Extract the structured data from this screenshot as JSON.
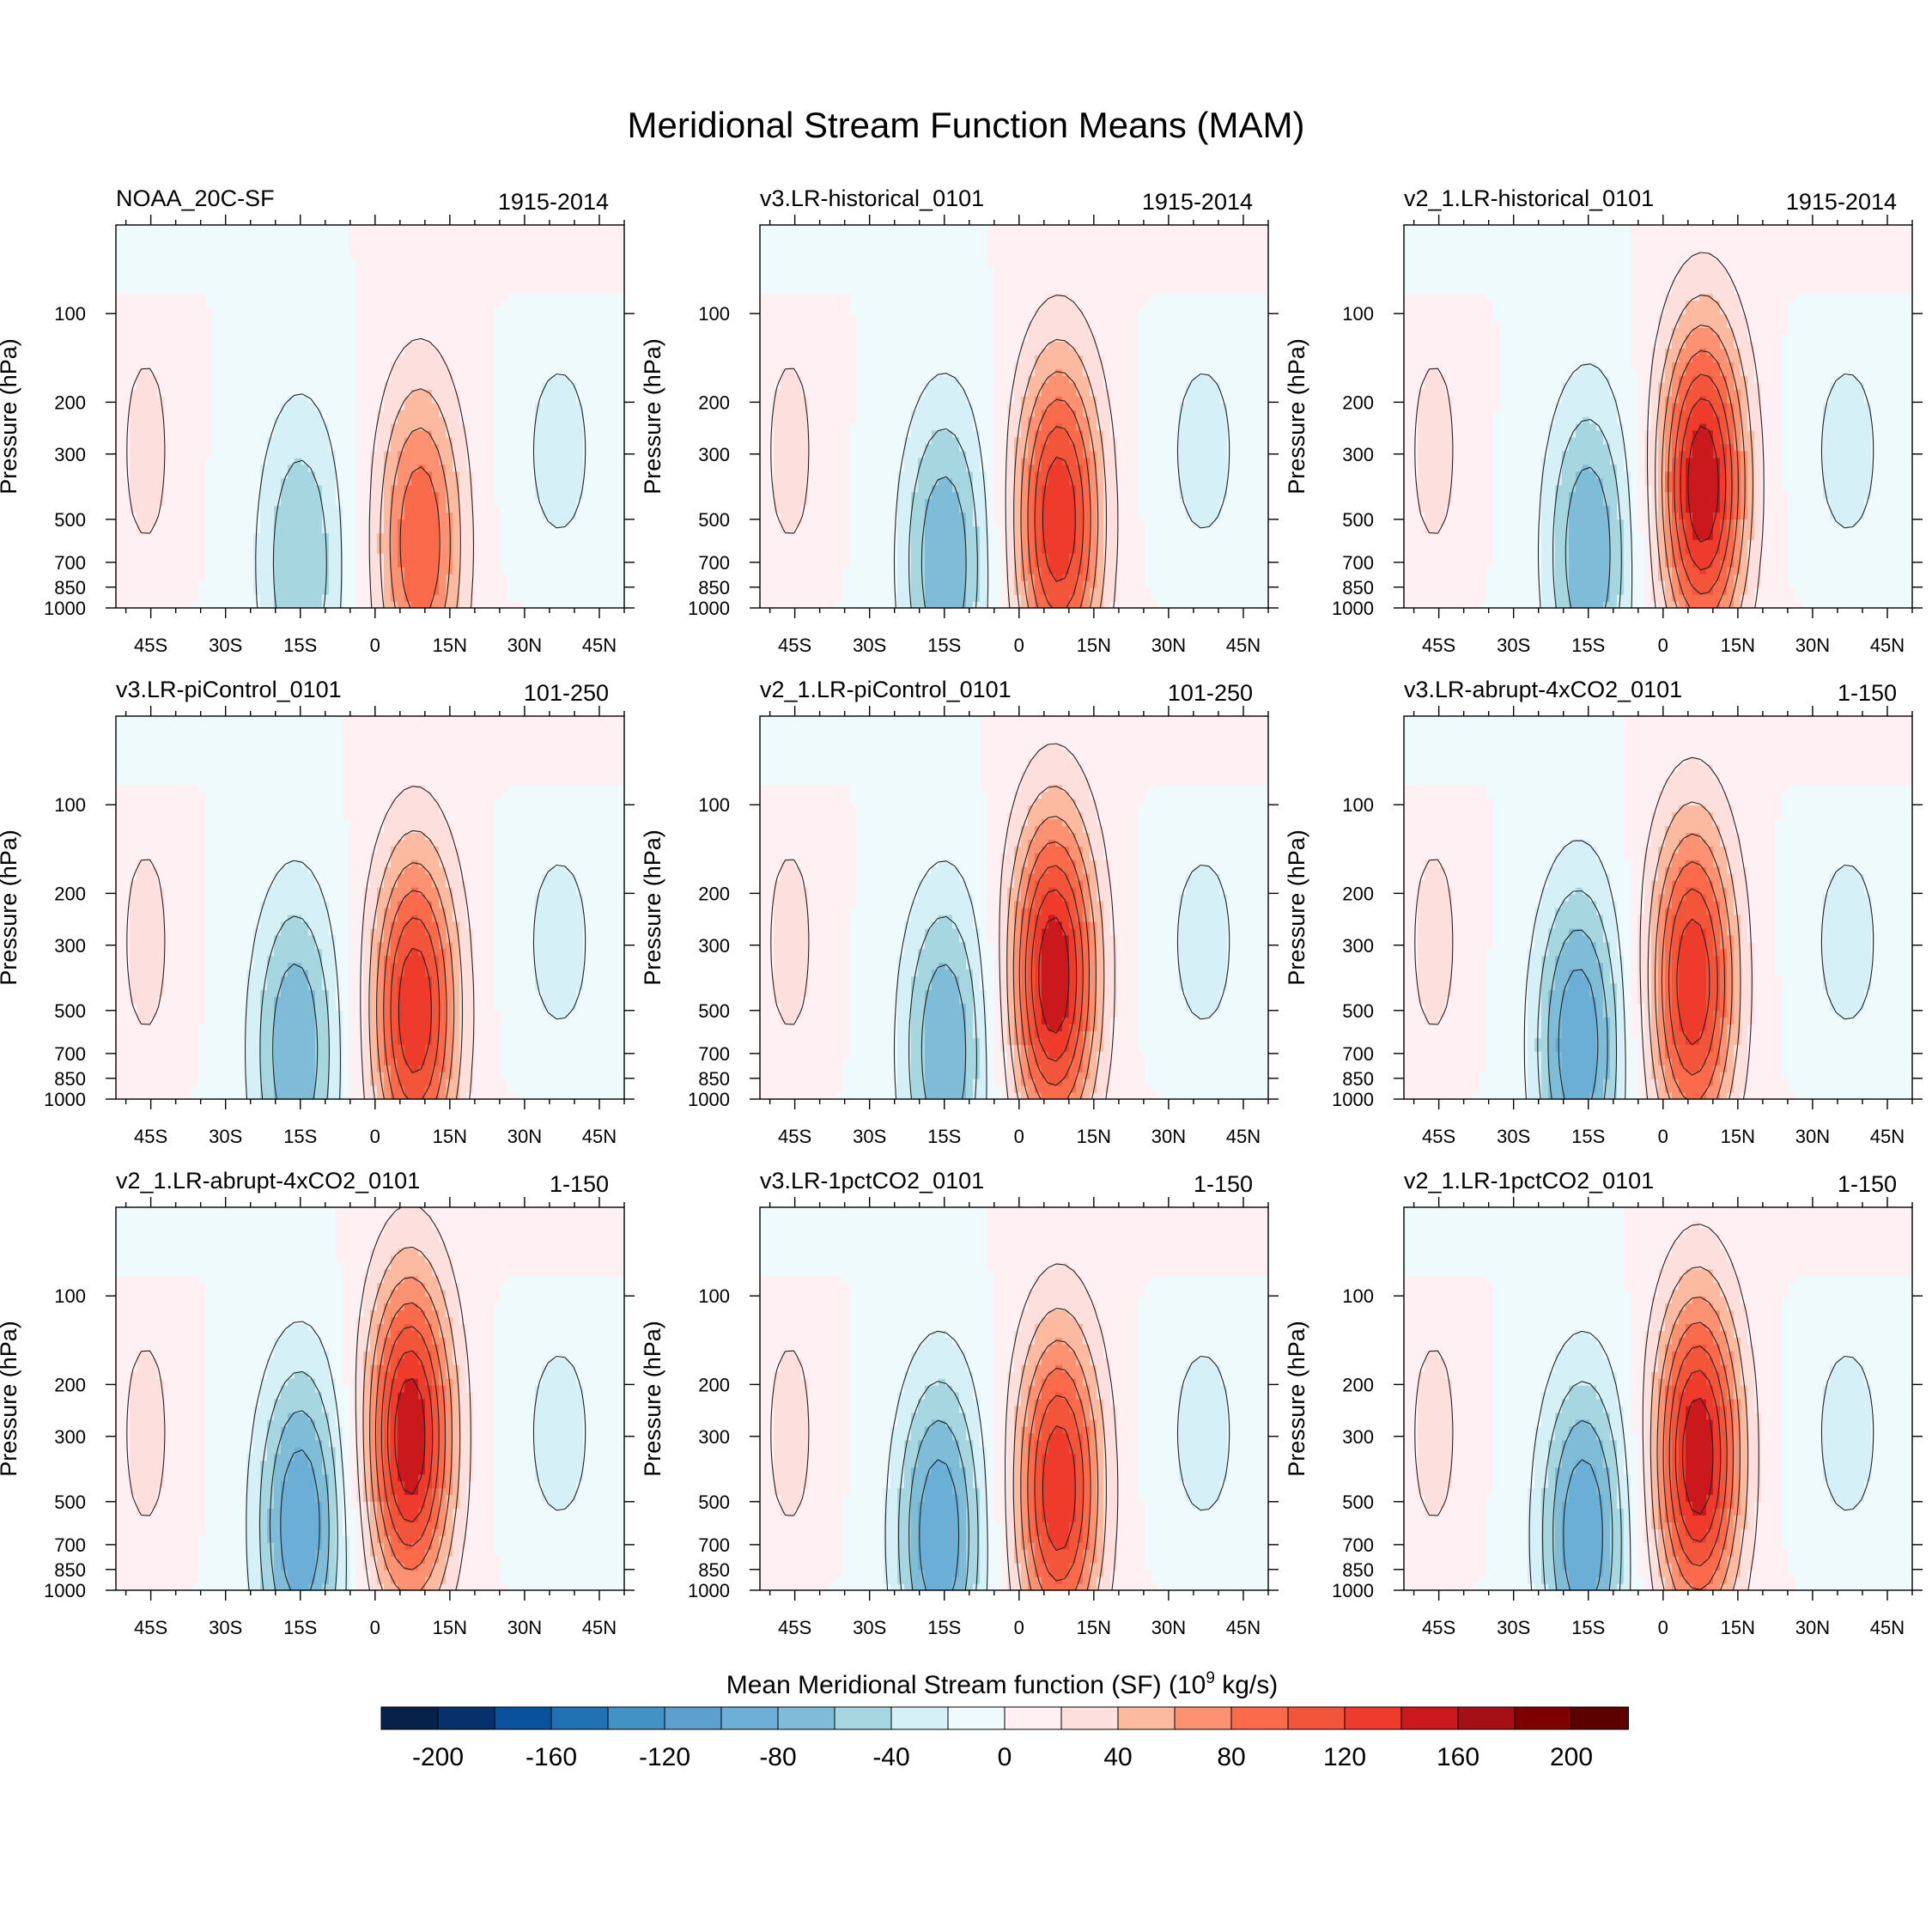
{
  "chart_data": {
    "type": "contour",
    "title": "Meridional Stream Function Means (MAM)",
    "ylabel": "Pressure (hPa)",
    "y_ticks": [
      "100",
      "200",
      "300",
      "500",
      "700",
      "850",
      "1000"
    ],
    "y_levels": [
      100,
      200,
      300,
      500,
      700,
      850,
      1000
    ],
    "x_ticks": [
      "45S",
      "30S",
      "15S",
      "0",
      "15N",
      "30N",
      "45N"
    ],
    "x_values": [
      -45,
      -30,
      -15,
      0,
      15,
      30,
      45
    ],
    "xlim": [
      -52,
      50
    ],
    "ylim": [
      1000,
      50
    ],
    "colorbar": {
      "title": "Mean Meridional Stream function (SF) (10",
      "title_exp": "9",
      "title_unit": " kg/s)",
      "levels": [
        -220,
        -200,
        -180,
        -160,
        -140,
        -120,
        -100,
        -80,
        -60,
        -40,
        -20,
        0,
        20,
        40,
        60,
        80,
        100,
        120,
        140,
        160,
        180,
        200,
        220
      ],
      "tick_labels": [
        "-200",
        "-160",
        "-120",
        "-80",
        "-40",
        "0",
        "40",
        "80",
        "120",
        "160",
        "200"
      ],
      "tick_values": [
        -200,
        -160,
        -120,
        -80,
        -40,
        0,
        40,
        80,
        120,
        160,
        200
      ],
      "colors": [
        "#08214a",
        "#08306b",
        "#08519c",
        "#2171b5",
        "#4292c6",
        "#5ca0cf",
        "#6baed6",
        "#7fbcd8",
        "#a6d7e0",
        "#d6f0f8",
        "#eefafc",
        "#fff0f3",
        "#fde0de",
        "#fcbba1",
        "#fc9272",
        "#fb6a4a",
        "#f2553a",
        "#ef3b2c",
        "#cb181d",
        "#a50f15",
        "#7f0000",
        "#5c0000"
      ]
    },
    "panels": [
      {
        "name": "NOAA_20C-SF",
        "period": "1915-2014",
        "south_cell": {
          "center_lat": -15,
          "center_p": 700,
          "min": -60
        },
        "north_cell": {
          "center_lat": 9,
          "center_p": 600,
          "max": 100
        }
      },
      {
        "name": "v3.LR-historical_0101",
        "period": "1915-2014",
        "south_cell": {
          "center_lat": -15,
          "center_p": 700,
          "min": -80
        },
        "north_cell": {
          "center_lat": 8,
          "center_p": 500,
          "max": 140
        }
      },
      {
        "name": "v2_1.LR-historical_0101",
        "period": "1915-2014",
        "south_cell": {
          "center_lat": -15,
          "center_p": 650,
          "min": -80
        },
        "north_cell": {
          "center_lat": 8,
          "center_p": 380,
          "max": 160
        }
      },
      {
        "name": "v3.LR-piControl_0101",
        "period": "101-250",
        "south_cell": {
          "center_lat": -16,
          "center_p": 680,
          "min": -80
        },
        "north_cell": {
          "center_lat": 8,
          "center_p": 500,
          "max": 140
        }
      },
      {
        "name": "v2_1.LR-piControl_0101",
        "period": "101-250",
        "south_cell": {
          "center_lat": -15,
          "center_p": 680,
          "min": -80
        },
        "north_cell": {
          "center_lat": 7,
          "center_p": 380,
          "max": 160
        }
      },
      {
        "name": "v3.LR-abrupt-4xCO2_0101",
        "period": "1-150",
        "south_cell": {
          "center_lat": -17,
          "center_p": 650,
          "min": -100
        },
        "north_cell": {
          "center_lat": 6,
          "center_p": 400,
          "max": 140
        }
      },
      {
        "name": "v2_1.LR-abrupt-4xCO2_0101",
        "period": "1-150",
        "south_cell": {
          "center_lat": -15,
          "center_p": 600,
          "min": -100
        },
        "north_cell": {
          "center_lat": 7,
          "center_p": 300,
          "max": 160
        }
      },
      {
        "name": "v3.LR-1pctCO2_0101",
        "period": "1-150",
        "south_cell": {
          "center_lat": -16,
          "center_p": 650,
          "min": -100
        },
        "north_cell": {
          "center_lat": 8,
          "center_p": 450,
          "max": 140
        }
      },
      {
        "name": "v2_1.LR-1pctCO2_0101",
        "period": "1-150",
        "south_cell": {
          "center_lat": -16,
          "center_p": 650,
          "min": -100
        },
        "north_cell": {
          "center_lat": 7,
          "center_p": 350,
          "max": 160
        }
      }
    ]
  }
}
